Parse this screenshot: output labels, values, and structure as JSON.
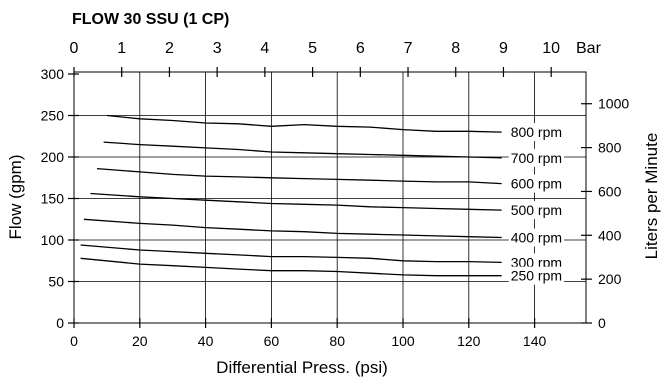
{
  "chart_data": {
    "type": "line",
    "title": "FLOW 30 SSU (1 CP)",
    "xlabel": "Differential Press. (psi)",
    "ylabel": "Flow (gpm)",
    "xlim": [
      0,
      155
    ],
    "ylim": [
      0,
      300
    ],
    "x_ticks": [
      "0",
      "20",
      "40",
      "60",
      "80",
      "100",
      "120",
      "140"
    ],
    "y_ticks": [
      "0",
      "50",
      "100",
      "150",
      "200",
      "250",
      "300"
    ],
    "top_axis": {
      "label": "Bar",
      "ticks": [
        "0",
        "1",
        "2",
        "3",
        "4",
        "5",
        "6",
        "7",
        "8",
        "9",
        "10"
      ]
    },
    "right_axis": {
      "label": "Liters per Minute",
      "ticks": [
        "0",
        "200",
        "400",
        "600",
        "800",
        "1000"
      ]
    },
    "grid": true,
    "series": [
      {
        "name": "800 rpm",
        "x": [
          10,
          20,
          30,
          40,
          50,
          60,
          70,
          80,
          90,
          100,
          110,
          120,
          130
        ],
        "y": [
          250,
          246,
          244,
          241,
          240,
          237,
          239,
          237,
          236,
          233,
          231,
          231,
          230
        ]
      },
      {
        "name": "700 rpm",
        "x": [
          9,
          20,
          30,
          40,
          50,
          60,
          70,
          80,
          90,
          100,
          110,
          120,
          130
        ],
        "y": [
          218,
          215,
          213,
          211,
          209,
          206,
          205,
          204,
          203,
          202,
          201,
          200,
          199
        ]
      },
      {
        "name": "600 rpm",
        "x": [
          7,
          20,
          30,
          40,
          50,
          60,
          70,
          80,
          90,
          100,
          110,
          120,
          130
        ],
        "y": [
          186,
          182,
          179,
          177,
          176,
          175,
          174,
          173,
          172,
          171,
          170,
          170,
          168
        ]
      },
      {
        "name": "500 rpm",
        "x": [
          5,
          20,
          30,
          40,
          50,
          60,
          70,
          80,
          90,
          100,
          110,
          120,
          130
        ],
        "y": [
          156,
          152,
          150,
          148,
          146,
          144,
          143,
          142,
          140,
          139,
          138,
          137,
          136
        ]
      },
      {
        "name": "400 rpm",
        "x": [
          3,
          20,
          30,
          40,
          50,
          60,
          70,
          80,
          90,
          100,
          110,
          120,
          130
        ],
        "y": [
          125,
          120,
          118,
          115,
          113,
          111,
          110,
          108,
          107,
          106,
          105,
          104,
          103
        ]
      },
      {
        "name": "300 rpm",
        "x": [
          2,
          20,
          30,
          40,
          50,
          60,
          70,
          80,
          90,
          100,
          110,
          120,
          130
        ],
        "y": [
          94,
          88,
          86,
          84,
          82,
          80,
          80,
          79,
          78,
          75,
          74,
          74,
          73
        ]
      },
      {
        "name": "250 rpm",
        "x": [
          2,
          20,
          30,
          40,
          50,
          60,
          70,
          80,
          90,
          100,
          110,
          120,
          130
        ],
        "y": [
          78,
          71,
          69,
          67,
          65,
          63,
          63,
          62,
          60,
          58,
          57,
          57,
          57
        ]
      }
    ]
  }
}
